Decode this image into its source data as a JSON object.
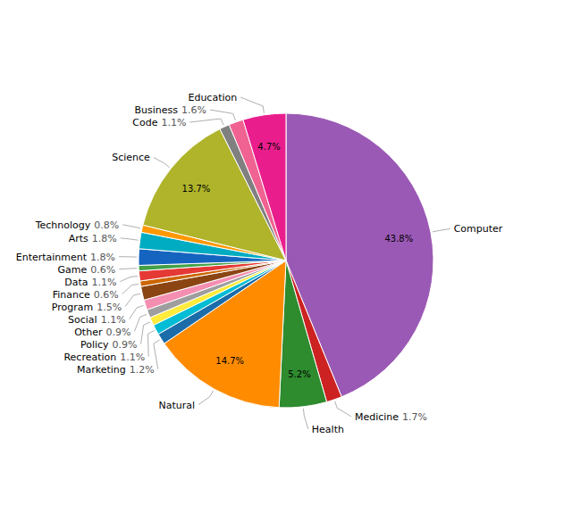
{
  "chart_data": {
    "type": "pie",
    "categories": [
      "Computer",
      "Medicine",
      "Health",
      "Natural",
      "Marketing",
      "Recreation",
      "Policy",
      "Other",
      "Social",
      "Program",
      "Finance",
      "Data",
      "Game",
      "Entertainment",
      "Arts",
      "Technology",
      "Science",
      "Code",
      "Business",
      "Education"
    ],
    "values": [
      43.8,
      1.7,
      5.2,
      14.7,
      1.2,
      1.1,
      0.9,
      0.9,
      1.1,
      1.5,
      0.6,
      1.1,
      0.6,
      1.8,
      1.8,
      0.8,
      13.7,
      1.1,
      1.6,
      4.7
    ],
    "value_labels": [
      "43.8%",
      "1.7%",
      "5.2%",
      "14.7%",
      "1.2%",
      "1.1%",
      "0.9%",
      "0.9%",
      "1.1%",
      "1.5%",
      "0.6%",
      "1.1%",
      "0.6%",
      "1.8%",
      "1.8%",
      "0.8%",
      "13.7%",
      "1.1%",
      "1.6%",
      "4.7%"
    ],
    "colors": [
      "#9b59b6",
      "#cc2222",
      "#2e8b2e",
      "#ff8c00",
      "#1b6ca8",
      "#00bcd4",
      "#ffeb3b",
      "#9e9e9e",
      "#f48fb1",
      "#8b4513",
      "#cc6600",
      "#e53935",
      "#43a047",
      "#1565c0",
      "#00acc1",
      "#ff9800",
      "#afb42b",
      "#808080",
      "#f06292",
      "#e91e8c"
    ],
    "data_labels": true
  }
}
